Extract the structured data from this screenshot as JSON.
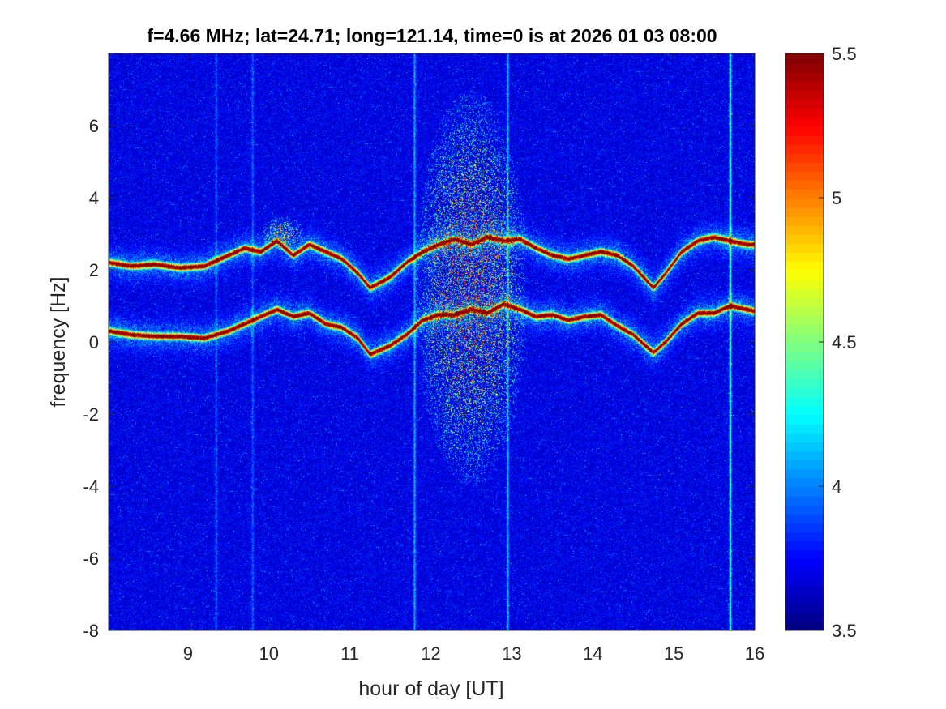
{
  "chart_data": {
    "type": "heatmap",
    "title": "f=4.66 MHz;  lat=24.71; long=121.14, time=0 is at 2026 01 03 08:00",
    "xlabel": "hour of day [UT]",
    "ylabel": "frequency [Hz]",
    "xlim": [
      8.02,
      16.0
    ],
    "ylim": [
      -8,
      8
    ],
    "xticks": [
      9,
      10,
      11,
      12,
      13,
      14,
      15,
      16
    ],
    "yticks": [
      -8,
      -6,
      -4,
      -2,
      0,
      2,
      4,
      6
    ],
    "colorbar": {
      "min": 3.5,
      "max": 5.5,
      "ticks": [
        3.5,
        4,
        4.5,
        5,
        5.5
      ],
      "colormap": "jet"
    },
    "background_level": 3.65,
    "traces": [
      {
        "hours": [
          8.02,
          8.3,
          8.6,
          8.9,
          9.2,
          9.5,
          9.7,
          9.9,
          10.1,
          10.3,
          10.5,
          10.7,
          10.9,
          11.1,
          11.25,
          11.5,
          11.7,
          11.9,
          12.1,
          12.3,
          12.5,
          12.7,
          12.9,
          13.1,
          13.3,
          13.5,
          13.7,
          13.9,
          14.1,
          14.3,
          14.5,
          14.75,
          14.9,
          15.1,
          15.3,
          15.5,
          15.7,
          15.9,
          16.0
        ],
        "freq_hz": [
          0.3,
          0.2,
          0.15,
          0.15,
          0.1,
          0.3,
          0.5,
          0.7,
          0.9,
          0.7,
          0.8,
          0.5,
          0.4,
          0.1,
          -0.35,
          -0.1,
          0.2,
          0.6,
          0.75,
          0.75,
          0.9,
          0.8,
          1.05,
          0.9,
          0.7,
          0.75,
          0.6,
          0.7,
          0.75,
          0.45,
          0.2,
          -0.3,
          0.0,
          0.5,
          0.8,
          0.8,
          1.0,
          0.9,
          0.85
        ],
        "peak_level": 5.5
      },
      {
        "hours": [
          8.02,
          8.3,
          8.6,
          8.9,
          9.2,
          9.5,
          9.7,
          9.9,
          10.1,
          10.3,
          10.5,
          10.7,
          10.9,
          11.1,
          11.25,
          11.5,
          11.7,
          11.9,
          12.1,
          12.3,
          12.5,
          12.7,
          12.9,
          13.1,
          13.3,
          13.5,
          13.7,
          13.9,
          14.1,
          14.3,
          14.5,
          14.75,
          14.9,
          15.1,
          15.3,
          15.5,
          15.7,
          15.9,
          16.0
        ],
        "freq_hz": [
          2.2,
          2.1,
          2.15,
          2.05,
          2.1,
          2.4,
          2.6,
          2.5,
          2.8,
          2.4,
          2.7,
          2.5,
          2.3,
          1.9,
          1.5,
          1.8,
          2.2,
          2.5,
          2.7,
          2.85,
          2.7,
          2.9,
          2.8,
          2.85,
          2.6,
          2.4,
          2.3,
          2.4,
          2.5,
          2.4,
          2.1,
          1.5,
          1.9,
          2.5,
          2.8,
          2.9,
          2.8,
          2.7,
          2.7
        ],
        "peak_level": 5.5
      }
    ],
    "burst_regions": [
      {
        "hours": [
          11.8,
          13.2
        ],
        "freq_hz": [
          -4,
          7
        ],
        "peak_level": 4.9
      },
      {
        "hours": [
          9.9,
          10.45
        ],
        "freq_hz": [
          2.5,
          3.5
        ],
        "peak_level": 4.7
      }
    ],
    "vertical_stripes": [
      {
        "hour": 9.35,
        "peak_level": 3.9
      },
      {
        "hour": 9.8,
        "peak_level": 3.9
      },
      {
        "hour": 11.8,
        "peak_level": 4.1
      },
      {
        "hour": 12.95,
        "peak_level": 4.1
      },
      {
        "hour": 15.7,
        "peak_level": 4.4
      }
    ]
  }
}
